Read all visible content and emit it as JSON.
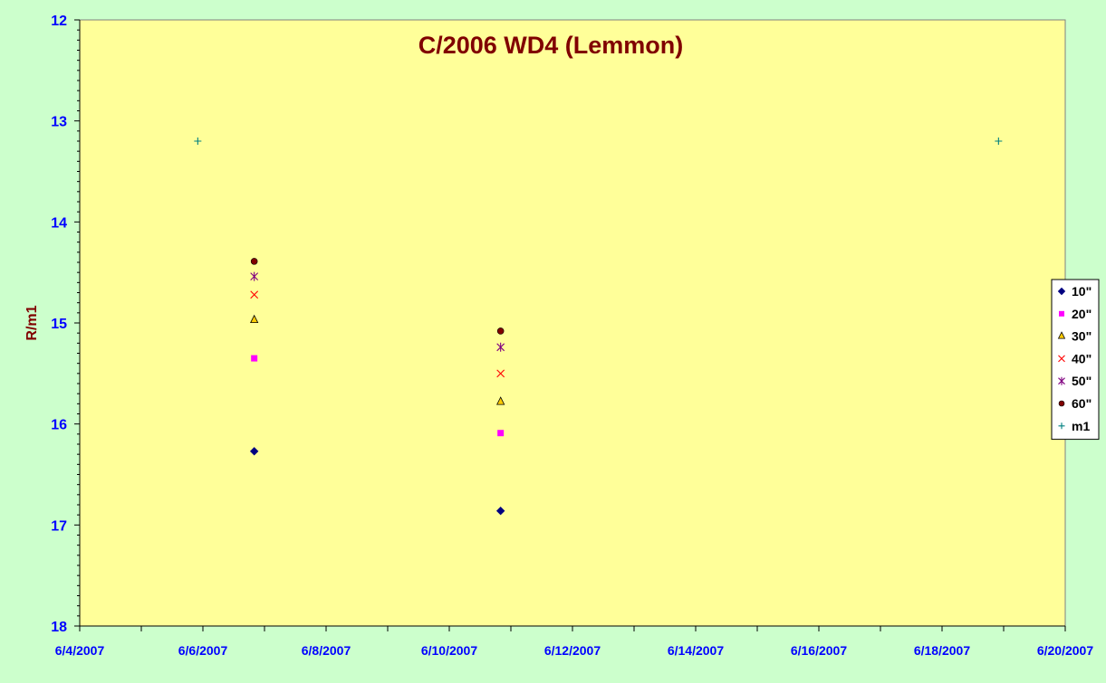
{
  "chart_data": {
    "type": "scatter",
    "title": "C/2006 WD4 (Lemmon)",
    "xlabel": "",
    "ylabel": "R/m1",
    "x_axis": {
      "type": "date",
      "min": "2007-06-04",
      "max": "2007-06-20",
      "tick_labels": [
        "6/4/2007",
        "6/6/2007",
        "6/8/2007",
        "6/10/2007",
        "6/12/2007",
        "6/14/2007",
        "6/16/2007",
        "6/18/2007",
        "6/20/2007"
      ]
    },
    "y_axis": {
      "min": 12,
      "max": 18,
      "reversed": true,
      "tick_labels": [
        "12",
        "13",
        "14",
        "15",
        "16",
        "17",
        "18"
      ]
    },
    "grid": false,
    "legend_position": "right",
    "colors": {
      "plot_background": "#ffff99",
      "page_background": "#ccffcc",
      "title": "#800000",
      "tick_labels": "#0000ff"
    },
    "series": [
      {
        "name": "10\"",
        "marker": "diamond",
        "color": "#000080",
        "points": [
          {
            "x": "2007-06-06 20:00",
            "y": 16.27
          },
          {
            "x": "2007-06-10 20:00",
            "y": 16.86
          }
        ]
      },
      {
        "name": "20\"",
        "marker": "square",
        "color": "#ff00ff",
        "points": [
          {
            "x": "2007-06-06 20:00",
            "y": 15.35
          },
          {
            "x": "2007-06-10 20:00",
            "y": 16.09
          }
        ]
      },
      {
        "name": "30\"",
        "marker": "triangle",
        "color": "#ffcc00",
        "points": [
          {
            "x": "2007-06-06 20:00",
            "y": 14.97
          },
          {
            "x": "2007-06-10 20:00",
            "y": 15.78
          }
        ]
      },
      {
        "name": "40\"",
        "marker": "x",
        "color": "#ff0000",
        "points": [
          {
            "x": "2007-06-06 20:00",
            "y": 14.72
          },
          {
            "x": "2007-06-10 20:00",
            "y": 15.5
          }
        ]
      },
      {
        "name": "50\"",
        "marker": "star",
        "color": "#800080",
        "points": [
          {
            "x": "2007-06-06 20:00",
            "y": 14.54
          },
          {
            "x": "2007-06-10 20:00",
            "y": 15.24
          }
        ]
      },
      {
        "name": "60\"",
        "marker": "circle",
        "color": "#800000",
        "points": [
          {
            "x": "2007-06-06 20:00",
            "y": 14.39
          },
          {
            "x": "2007-06-10 20:00",
            "y": 15.08
          }
        ]
      },
      {
        "name": "m1",
        "marker": "plus",
        "color": "#008080",
        "points": [
          {
            "x": "2007-06-05 22:00",
            "y": 13.2
          },
          {
            "x": "2007-06-18 22:00",
            "y": 13.2
          }
        ]
      }
    ]
  }
}
